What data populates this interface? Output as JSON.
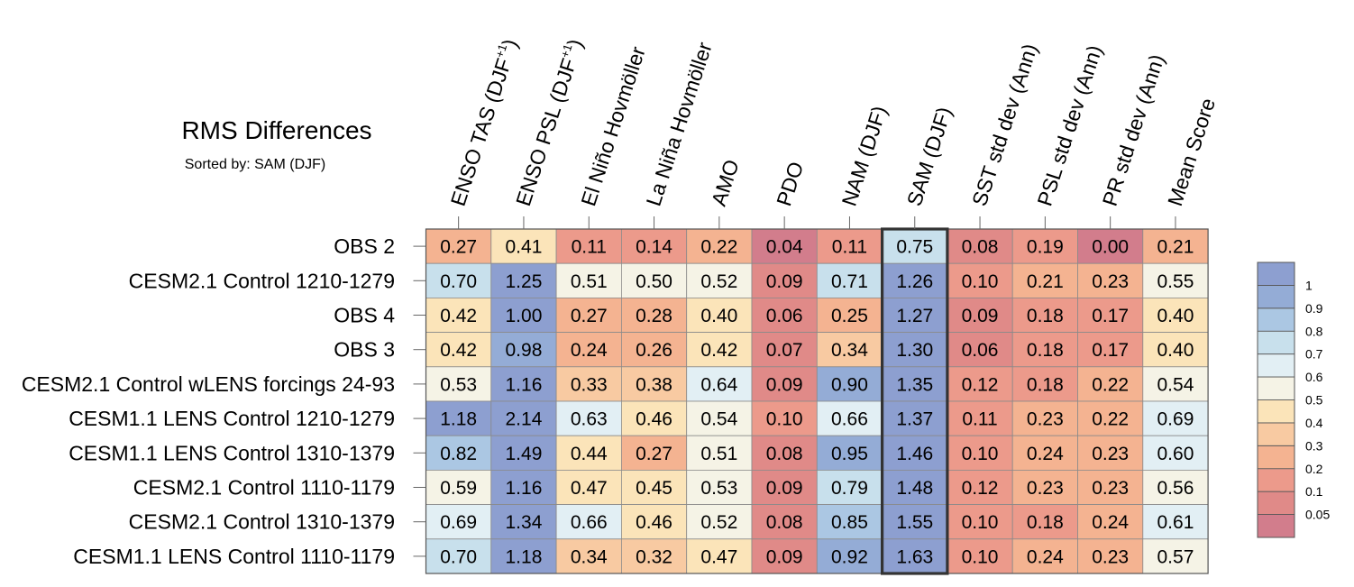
{
  "chart_data": {
    "type": "heatmap",
    "title": "RMS Differences",
    "subtitle": "Sorted by: SAM (DJF)",
    "columns": [
      {
        "label": "ENSO TAS (DJF",
        "sup": "+1",
        "close": ")"
      },
      {
        "label": "ENSO PSL (DJF",
        "sup": "+1",
        "close": ")"
      },
      {
        "label": "El Niño Hovmöller"
      },
      {
        "label": "La Niña Hovmöller"
      },
      {
        "label": "AMO"
      },
      {
        "label": "PDO"
      },
      {
        "label": "NAM (DJF)"
      },
      {
        "label": "SAM (DJF)"
      },
      {
        "label": "SST std dev (Ann)"
      },
      {
        "label": "PSL std dev (Ann)"
      },
      {
        "label": "PR std dev (Ann)"
      },
      {
        "label": "Mean Score"
      }
    ],
    "rows": [
      {
        "name": "OBS 2",
        "values": [
          "0.27",
          "0.41",
          "0.11",
          "0.14",
          "0.22",
          "0.04",
          "0.11",
          "0.75",
          "0.08",
          "0.19",
          "0.00",
          "0.21"
        ]
      },
      {
        "name": "CESM2.1 Control 1210-1279",
        "values": [
          "0.70",
          "1.25",
          "0.51",
          "0.50",
          "0.52",
          "0.09",
          "0.71",
          "1.26",
          "0.10",
          "0.21",
          "0.23",
          "0.55"
        ]
      },
      {
        "name": "OBS 4",
        "values": [
          "0.42",
          "1.00",
          "0.27",
          "0.28",
          "0.40",
          "0.06",
          "0.25",
          "1.27",
          "0.09",
          "0.18",
          "0.17",
          "0.40"
        ]
      },
      {
        "name": "OBS 3",
        "values": [
          "0.42",
          "0.98",
          "0.24",
          "0.26",
          "0.42",
          "0.07",
          "0.34",
          "1.30",
          "0.06",
          "0.18",
          "0.17",
          "0.40"
        ]
      },
      {
        "name": "CESM2.1 Control wLENS forcings 24-93",
        "values": [
          "0.53",
          "1.16",
          "0.33",
          "0.38",
          "0.64",
          "0.09",
          "0.90",
          "1.35",
          "0.12",
          "0.18",
          "0.22",
          "0.54"
        ]
      },
      {
        "name": "CESM1.1 LENS Control 1210-1279",
        "values": [
          "1.18",
          "2.14",
          "0.63",
          "0.46",
          "0.54",
          "0.10",
          "0.66",
          "1.37",
          "0.11",
          "0.23",
          "0.22",
          "0.69"
        ]
      },
      {
        "name": "CESM1.1 LENS Control 1310-1379",
        "values": [
          "0.82",
          "1.49",
          "0.44",
          "0.27",
          "0.51",
          "0.08",
          "0.95",
          "1.46",
          "0.10",
          "0.24",
          "0.23",
          "0.60"
        ]
      },
      {
        "name": "CESM2.1 Control 1110-1179",
        "values": [
          "0.59",
          "1.16",
          "0.47",
          "0.45",
          "0.53",
          "0.09",
          "0.79",
          "1.48",
          "0.12",
          "0.23",
          "0.23",
          "0.56"
        ]
      },
      {
        "name": "CESM2.1 Control 1310-1379",
        "values": [
          "0.69",
          "1.34",
          "0.66",
          "0.46",
          "0.52",
          "0.08",
          "0.85",
          "1.55",
          "0.10",
          "0.18",
          "0.24",
          "0.61"
        ]
      },
      {
        "name": "CESM1.1 LENS Control 1110-1179",
        "values": [
          "0.70",
          "1.18",
          "0.34",
          "0.32",
          "0.47",
          "0.09",
          "0.92",
          "1.63",
          "0.10",
          "0.24",
          "0.23",
          "0.57"
        ]
      }
    ],
    "highlighted_column": "SAM (DJF)",
    "colorbar": {
      "levels": [
        0.05,
        0.1,
        0.2,
        0.3,
        0.4,
        0.5,
        0.6,
        0.7,
        0.8,
        0.9,
        1
      ],
      "labels": [
        "0.05",
        "0.1",
        "0.2",
        "0.3",
        "0.4",
        "0.5",
        "0.6",
        "0.7",
        "0.8",
        "0.9",
        "1"
      ],
      "colors": [
        "#d27d8c",
        "#e08a88",
        "#ec9a8b",
        "#f4b391",
        "#f8caa2",
        "#fbe4b9",
        "#f5f3e6",
        "#e2eff4",
        "#c8e0ec",
        "#abc7e3",
        "#94acd6",
        "#8d9fd0"
      ]
    }
  }
}
